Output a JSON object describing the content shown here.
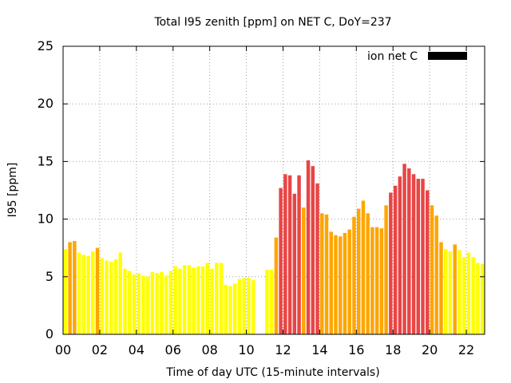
{
  "chart_data": {
    "type": "bar",
    "title": "Total I95 zenith [ppm] on NET C, DoY=237",
    "xlabel": "Time of day UTC (15-minute intervals)",
    "ylabel": "I95 [ppm]",
    "xlim": [
      0,
      23
    ],
    "ylim": [
      0,
      25
    ],
    "grid": true,
    "legend_position": "top-right",
    "x_ticks": [
      "00",
      "02",
      "04",
      "06",
      "08",
      "10",
      "12",
      "14",
      "16",
      "18",
      "20",
      "22"
    ],
    "y_ticks": [
      "0",
      "5",
      "10",
      "15",
      "20",
      "25"
    ],
    "x_tick_values": [
      0,
      2,
      4,
      6,
      8,
      10,
      12,
      14,
      16,
      18,
      20,
      22
    ],
    "y_tick_values": [
      0,
      5,
      10,
      15,
      20,
      25
    ],
    "interval_hours": 0.25,
    "series": [
      {
        "name": "ion net C",
        "color": "#000000",
        "values": [
          7.4,
          8.0,
          8.1,
          7.1,
          6.9,
          6.8,
          7.2,
          7.5,
          6.6,
          6.4,
          6.3,
          6.5,
          7.1,
          5.7,
          5.5,
          5.2,
          5.3,
          5.1,
          5.0,
          5.4,
          5.3,
          5.4,
          5.1,
          5.5,
          5.9,
          5.7,
          6.0,
          6.0,
          5.8,
          5.9,
          5.9,
          6.2,
          5.7,
          6.2,
          6.2,
          4.3,
          4.2,
          4.4,
          4.8,
          4.9,
          4.9,
          4.7,
          null,
          null,
          5.6,
          5.6,
          8.4,
          12.7,
          13.9,
          13.8,
          12.2,
          13.8,
          11.0,
          15.1,
          14.6,
          13.1,
          10.5,
          10.4,
          8.9,
          8.6,
          8.5,
          8.8,
          9.1,
          10.2,
          10.9,
          11.6,
          10.5,
          9.3,
          9.3,
          9.2,
          11.2,
          12.3,
          12.9,
          13.7,
          14.8,
          14.4,
          13.9,
          13.5,
          13.5,
          12.5,
          11.2,
          10.3,
          8.0,
          7.4,
          7.2,
          7.8,
          7.3,
          6.7,
          7.1,
          6.7,
          6.2,
          6.1
        ]
      }
    ],
    "color_scale": {
      "yellow": "#ffff00",
      "orange": "#ffa500",
      "red": "#e84545"
    },
    "color_thresholds": [
      7.5,
      12
    ]
  }
}
